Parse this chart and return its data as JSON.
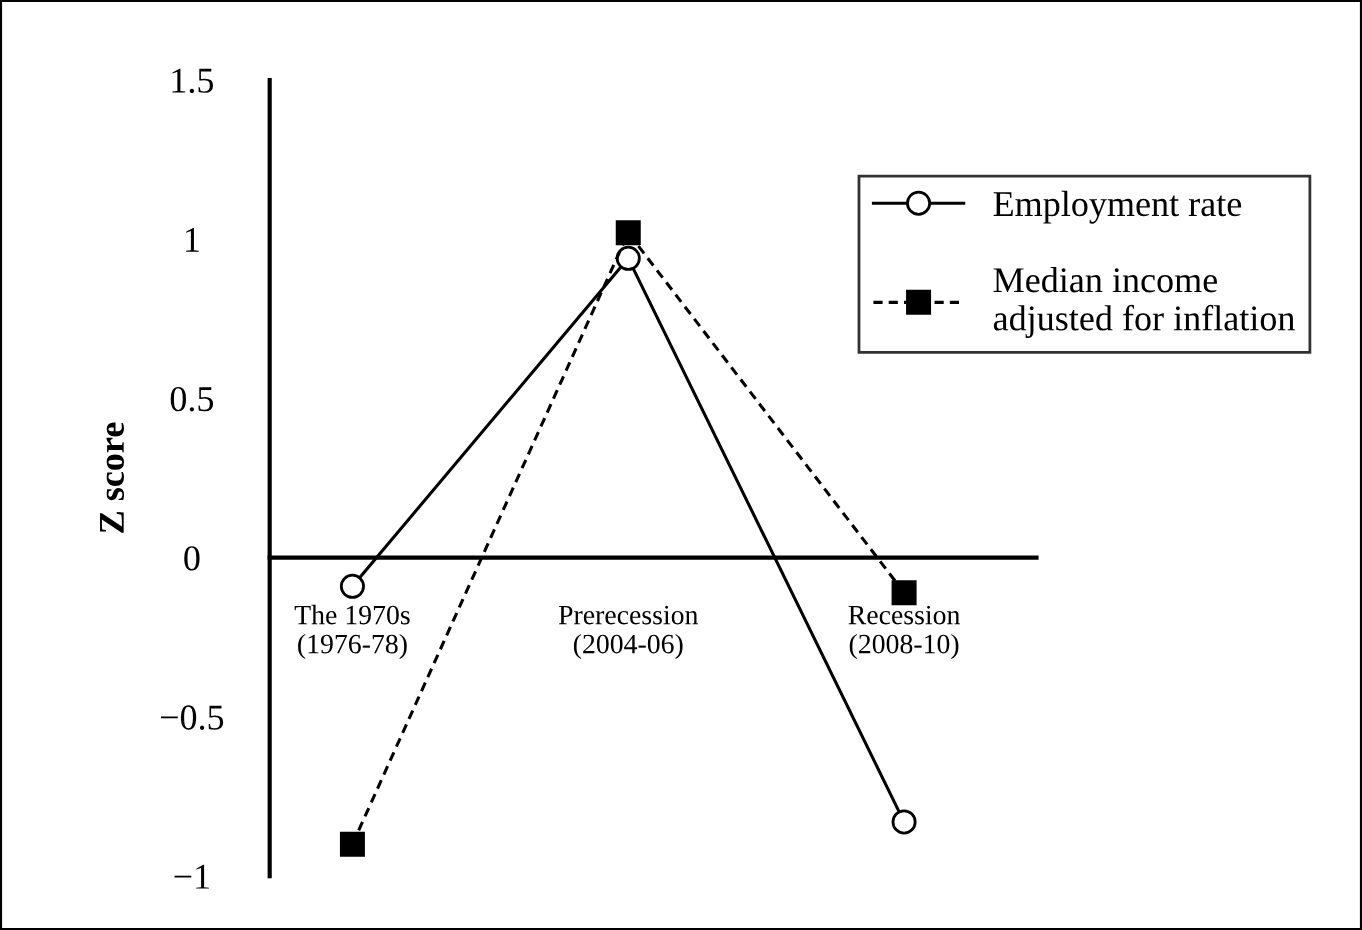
{
  "chart_data": {
    "type": "line",
    "ylabel": "Z score",
    "categories": [
      "The 1970s\n(1976-78)",
      "Prerecession\n(2004-06)",
      "Recession\n(2008-10)"
    ],
    "series": [
      {
        "name": "Employment rate",
        "color": "#000000",
        "values": [
          -0.09,
          0.94,
          -0.83
        ],
        "marker": "circle",
        "line_style": "solid"
      },
      {
        "name": "Median income\nadjusted for inflation",
        "color": "#000000",
        "values": [
          -0.9,
          1.02,
          -0.11
        ],
        "marker": "square",
        "line_style": "dashed"
      }
    ],
    "ylim": [
      -1,
      1.5
    ],
    "yticks": [
      {
        "value": -1,
        "label": "−1"
      },
      {
        "value": -0.5,
        "label": "−0.5"
      },
      0,
      0.5,
      1,
      1.5
    ],
    "grid": false,
    "legend": "top right"
  }
}
